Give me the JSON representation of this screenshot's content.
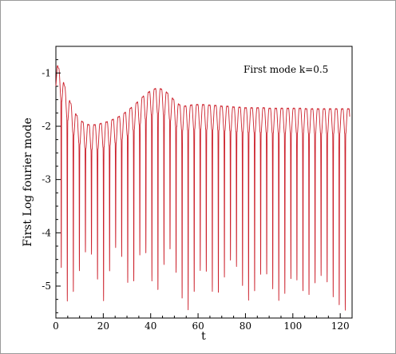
{
  "chart_data": {
    "type": "line",
    "title": "",
    "annotation": "First mode k=0.5",
    "xlabel": "t",
    "ylabel": "First Log fourier mode",
    "xlim": [
      0,
      125
    ],
    "ylim": [
      -5.6,
      -0.5
    ],
    "x_ticks": [
      0,
      20,
      40,
      60,
      80,
      100,
      120
    ],
    "y_ticks": [
      -1,
      -2,
      -3,
      -4,
      -5
    ],
    "grid": false,
    "legend": "none",
    "series": [
      {
        "color": "#cc1f2a",
        "envelope": {
          "t": [
            0,
            2,
            4,
            6,
            8,
            10,
            12,
            14,
            16,
            18,
            20,
            22,
            24,
            26,
            28,
            30,
            32,
            34,
            36,
            38,
            40,
            42,
            44,
            46,
            48,
            50,
            52,
            54,
            56,
            58,
            60,
            62,
            64,
            66,
            68,
            70,
            72,
            74,
            76,
            78,
            80,
            82,
            84,
            86,
            88,
            90,
            92,
            94,
            96,
            98,
            100,
            102,
            104,
            106,
            108,
            110,
            112,
            114,
            116,
            118,
            120,
            122,
            124
          ],
          "peak": [
            -0.7,
            -0.9,
            -1.2,
            -1.45,
            -1.65,
            -1.78,
            -1.85,
            -1.88,
            -1.88,
            -1.87,
            -1.84,
            -1.82,
            -1.78,
            -1.74,
            -1.69,
            -1.62,
            -1.55,
            -1.47,
            -1.38,
            -1.3,
            -1.24,
            -1.2,
            -1.2,
            -1.24,
            -1.32,
            -1.42,
            -1.5,
            -1.53,
            -1.52,
            -1.5,
            -1.5,
            -1.5,
            -1.51,
            -1.51,
            -1.52,
            -1.53,
            -1.53,
            -1.54,
            -1.55,
            -1.55,
            -1.56,
            -1.56,
            -1.56,
            -1.56,
            -1.56,
            -1.57,
            -1.57,
            -1.57,
            -1.57,
            -1.57,
            -1.57,
            -1.57,
            -1.57,
            -1.58,
            -1.58,
            -1.58,
            -1.58,
            -1.58,
            -1.58,
            -1.58,
            -1.58,
            -1.58,
            -1.58
          ],
          "trough": [
            -3.9,
            -4.6,
            -5.2,
            -5.4,
            -5.0,
            -4.7,
            -4.4,
            -4.3,
            -4.5,
            -5.0,
            -5.3,
            -4.9,
            -4.4,
            -4.2,
            -4.5,
            -4.9,
            -5.1,
            -4.7,
            -4.3,
            -4.4,
            -4.8,
            -5.2,
            -5.0,
            -4.5,
            -4.3,
            -4.6,
            -5.0,
            -5.4,
            -5.45,
            -5.2,
            -4.8,
            -4.6,
            -4.8,
            -5.1,
            -5.2,
            -5.0,
            -4.7,
            -4.5,
            -4.6,
            -4.9,
            -5.2,
            -5.3,
            -5.1,
            -4.8,
            -4.7,
            -4.9,
            -5.1,
            -5.3,
            -5.2,
            -5.0,
            -4.8,
            -4.9,
            -5.1,
            -5.2,
            -5.1,
            -4.9,
            -4.8,
            -4.9,
            -5.1,
            -5.3,
            -5.4,
            -5.45,
            -5.5
          ]
        },
        "cycle_period": 2.55,
        "bounce_depth": 0.1
      }
    ]
  }
}
